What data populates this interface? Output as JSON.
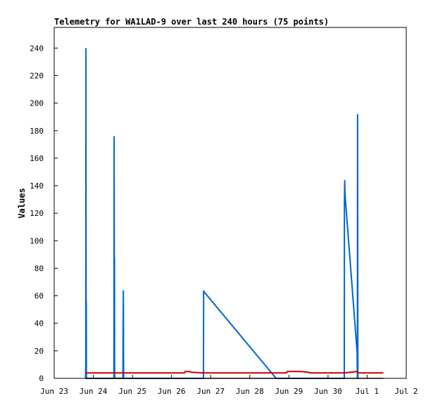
{
  "chart_data": {
    "type": "line",
    "title": "Telemetry for WA1LAD-9 over last 240 hours (75 points)",
    "xlabel": "",
    "ylabel": "Values",
    "ylim": [
      0,
      255
    ],
    "xlim": [
      "Jun 23",
      "Jul 2"
    ],
    "grid": false,
    "legend": "none",
    "x_ticks": [
      "Jun 23",
      "Jun 24",
      "Jun 25",
      "Jun 26",
      "Jun 27",
      "Jun 28",
      "Jun 29",
      "Jun 30",
      "Jul 1",
      "Jul 2"
    ],
    "y_ticks": [
      0,
      20,
      40,
      60,
      80,
      100,
      120,
      140,
      160,
      180,
      200,
      220,
      240
    ],
    "series": [
      {
        "color": "#0066cc",
        "x": [
          "Jun 23 19:12",
          "Jun 23 19:20",
          "Jun 23 19:30",
          "Jun 23 19:35",
          "Jun 23 19:40",
          "Jun 23 19:45",
          "Jun 23 19:52",
          "Jun 23 20:00",
          "Jun 23 20:05",
          "Jun 24 12:38",
          "Jun 24 12:45",
          "Jun 24 12:55",
          "Jun 24 13:00",
          "Jun 24 13:05",
          "Jun 24 13:10",
          "Jun 24 18:10",
          "Jun 24 18:15",
          "Jun 24 18:25",
          "Jun 24 18:35",
          "Jun 24 18:40",
          "Jun 26 19:34",
          "Jun 26 19:40",
          "Jun 26 19:50",
          "Jun 28 16:10",
          "Jun 28 16:20",
          "Jun 30 9:58",
          "Jun 30 10:05",
          "Jun 30 10:15",
          "Jun 30 10:25",
          "Jun 30 17:50",
          "Jun 30 18:00",
          "Jun 30 18:10",
          "Jun 30 18:20",
          "Jun 30 18:30",
          "Jun 30 18:40"
        ],
        "y": [
          0,
          8,
          240,
          0,
          56,
          0,
          0,
          0,
          0,
          0,
          176,
          0,
          88,
          0,
          0,
          0,
          32,
          64,
          0,
          0,
          0,
          64,
          63,
          0,
          0,
          0,
          128,
          144,
          134,
          19,
          0,
          192,
          0,
          0,
          0
        ]
      },
      {
        "color": "#cc0000",
        "x": [
          "Jun 23 19:12",
          "Jun 24 12:38",
          "Jun 24 18:10",
          "Jun 26 8:00",
          "Jun 26 8:20",
          "Jun 26 11:00",
          "Jun 26 11:30",
          "Jun 26 19:34",
          "Jun 28 16:10",
          "Jun 28 16:20",
          "Jun 28 22:30",
          "Jun 28 23:00",
          "Jun 29 7:00",
          "Jun 29 12:00",
          "Jun 29 12:30",
          "Jun 30 9:58",
          "Jun 30 18:00",
          "Jun 30 18:30",
          "Jul 1 10:00"
        ],
        "y": [
          4,
          4,
          4,
          4,
          5,
          5,
          4.5,
          4,
          4,
          4,
          4,
          5,
          5,
          4.5,
          4,
          4,
          5,
          4,
          4
        ]
      },
      {
        "color": "#000000",
        "x": [
          "Jun 23 19:12",
          "Jul 1 10:00"
        ],
        "y": [
          0,
          0
        ]
      }
    ]
  }
}
